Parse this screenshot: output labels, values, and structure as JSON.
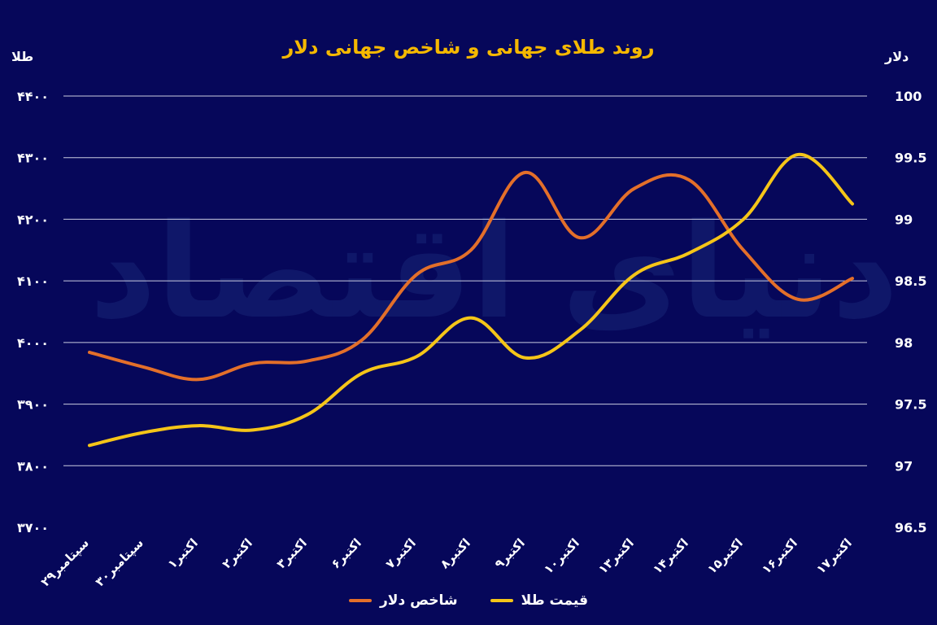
{
  "watermark": "دنیای اقتصاد",
  "chart_data": {
    "type": "line",
    "title": "روند طلای جهانی و شاخص جهانی دلار",
    "y_left_label": "طلا",
    "y_right_label": "دلار",
    "categories": [
      "۲۹سپتامبر",
      "۳۰سپتامبر",
      "۱اکتبر",
      "۲اکتبر",
      "۳اکتبر",
      "۶اکتبر",
      "۷اکتبر",
      "۸اکتبر",
      "۹اکتبر",
      "۱۰اکتبر",
      "۱۳اکتبر",
      "۱۴اکتبر",
      "۱۵اکتبر",
      "۱۶اکتبر",
      "۱۷اکتبر"
    ],
    "y_left_ticks": [
      "۳۷۰۰",
      "۳۸۰۰",
      "۳۹۰۰",
      "۴۰۰۰",
      "۴۱۰۰",
      "۴۲۰۰",
      "۴۳۰۰",
      "۴۴۰۰"
    ],
    "y_left_lim": [
      3700,
      4400
    ],
    "y_right_ticks": [
      "96.5",
      "97",
      "97.5",
      "98",
      "98.5",
      "99",
      "99.5",
      "100"
    ],
    "y_right_lim": [
      96.5,
      100
    ],
    "series": [
      {
        "name": "قیمت طلا",
        "axis": "left",
        "color": "#f5c518",
        "values": [
          3833,
          3854,
          3865,
          3858,
          3883,
          3950,
          3977,
          4040,
          3975,
          4020,
          4110,
          4145,
          4200,
          4305,
          4225
        ]
      },
      {
        "name": "شاخص دلار",
        "axis": "right",
        "color": "#e36f2a",
        "values": [
          97.92,
          97.8,
          97.7,
          97.83,
          97.85,
          98.02,
          98.55,
          98.75,
          99.38,
          98.85,
          99.25,
          99.32,
          98.75,
          98.35,
          98.52
        ]
      }
    ],
    "grid": true,
    "legend_position": "bottom-center"
  }
}
